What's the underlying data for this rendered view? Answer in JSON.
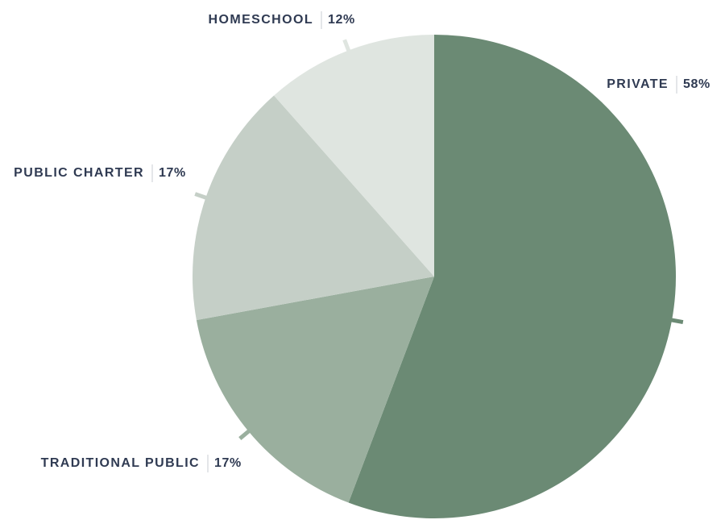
{
  "chart_data": {
    "type": "pie",
    "title": "",
    "slices": [
      {
        "label": "PRIVATE",
        "value": 58,
        "value_label": "58%",
        "color": "#6b8a74"
      },
      {
        "label": "TRADITIONAL PUBLIC",
        "value": 17,
        "value_label": "17%",
        "color": "#9aaf9e"
      },
      {
        "label": "PUBLIC CHARTER",
        "value": 17,
        "value_label": "17%",
        "color": "#c5cfc7"
      },
      {
        "label": "HOMESCHOOL",
        "value": 12,
        "value_label": "12%",
        "color": "#dfe5e0"
      }
    ],
    "label_color": "#2f3a52",
    "start_angle": "12 o'clock",
    "direction": "clockwise"
  }
}
